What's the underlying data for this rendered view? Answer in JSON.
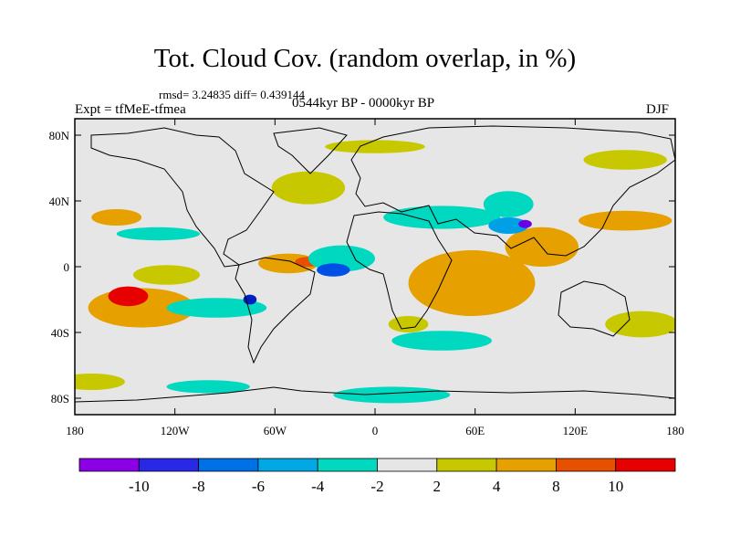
{
  "title": "Tot. Cloud Cov. (random overlap, in %)",
  "stats": "rmsd= 3.24835 diff= 0.439144",
  "experiment": "Expt = tfMeE-tfmea",
  "period": "0544kyr BP - 0000kyr BP",
  "season": "DJF",
  "map": {
    "projection": "cylindrical-equidistant",
    "lon_range": [
      -180,
      180
    ],
    "lat_range": [
      -90,
      90
    ],
    "background_color": "#e6e6e6",
    "x_ticks": [
      {
        "value": -180,
        "label": "180"
      },
      {
        "value": -120,
        "label": "120W"
      },
      {
        "value": -60,
        "label": "60W"
      },
      {
        "value": 0,
        "label": "0"
      },
      {
        "value": 60,
        "label": "60E"
      },
      {
        "value": 120,
        "label": "120E"
      },
      {
        "value": 180,
        "label": "180"
      }
    ],
    "y_ticks": [
      {
        "value": 80,
        "label": "80N"
      },
      {
        "value": 40,
        "label": "40N"
      },
      {
        "value": 0,
        "label": "0"
      },
      {
        "value": -40,
        "label": "40S"
      },
      {
        "value": -80,
        "label": "80S"
      }
    ],
    "anomaly_regions": [
      {
        "lon": 58,
        "lat": -10,
        "rlon": 38,
        "rlat": 20,
        "color": "#e6a000"
      },
      {
        "lon": 100,
        "lat": 12,
        "rlon": 22,
        "rlat": 12,
        "color": "#e6a000"
      },
      {
        "lon": 150,
        "lat": 28,
        "rlon": 28,
        "rlat": 6,
        "color": "#e6a000"
      },
      {
        "lon": -155,
        "lat": 30,
        "rlon": 15,
        "rlat": 5,
        "color": "#e6a000"
      },
      {
        "lon": -140,
        "lat": -25,
        "rlon": 32,
        "rlat": 12,
        "color": "#e6a000"
      },
      {
        "lon": -148,
        "lat": -18,
        "rlon": 12,
        "rlat": 6,
        "color": "#e60000"
      },
      {
        "lon": -52,
        "lat": 2,
        "rlon": 18,
        "rlat": 6,
        "color": "#e6a000"
      },
      {
        "lon": -40,
        "lat": 3,
        "rlon": 8,
        "rlat": 3,
        "color": "#e65000"
      },
      {
        "lon": -125,
        "lat": -5,
        "rlon": 20,
        "rlat": 6,
        "color": "#c8c800"
      },
      {
        "lon": -40,
        "lat": 48,
        "rlon": 22,
        "rlat": 10,
        "color": "#c8c800"
      },
      {
        "lon": 0,
        "lat": 73,
        "rlon": 30,
        "rlat": 4,
        "color": "#c8c800"
      },
      {
        "lon": 150,
        "lat": 65,
        "rlon": 25,
        "rlat": 6,
        "color": "#c8c800"
      },
      {
        "lon": 160,
        "lat": -35,
        "rlon": 22,
        "rlat": 8,
        "color": "#c8c800"
      },
      {
        "lon": -170,
        "lat": -70,
        "rlon": 20,
        "rlat": 5,
        "color": "#c8c800"
      },
      {
        "lon": 20,
        "lat": -35,
        "rlon": 12,
        "rlat": 5,
        "color": "#c8c800"
      },
      {
        "lon": 40,
        "lat": 30,
        "rlon": 35,
        "rlat": 7,
        "color": "#00d8c0"
      },
      {
        "lon": 80,
        "lat": 38,
        "rlon": 15,
        "rlat": 8,
        "color": "#00d8c0"
      },
      {
        "lon": -20,
        "lat": 5,
        "rlon": 20,
        "rlat": 8,
        "color": "#00d8c0"
      },
      {
        "lon": -130,
        "lat": 20,
        "rlon": 25,
        "rlat": 4,
        "color": "#00d8c0"
      },
      {
        "lon": -95,
        "lat": -25,
        "rlon": 30,
        "rlat": 6,
        "color": "#00d8c0"
      },
      {
        "lon": 40,
        "lat": -45,
        "rlon": 30,
        "rlat": 6,
        "color": "#00d8c0"
      },
      {
        "lon": 10,
        "lat": -78,
        "rlon": 35,
        "rlat": 5,
        "color": "#00d8c0"
      },
      {
        "lon": -100,
        "lat": -73,
        "rlon": 25,
        "rlat": 4,
        "color": "#00d8c0"
      },
      {
        "lon": 80,
        "lat": 25,
        "rlon": 12,
        "rlat": 5,
        "color": "#00a0e6"
      },
      {
        "lon": -25,
        "lat": -2,
        "rlon": 10,
        "rlat": 4,
        "color": "#0050e6"
      },
      {
        "lon": 90,
        "lat": 26,
        "rlon": 4,
        "rlat": 2.5,
        "color": "#6a00e6"
      },
      {
        "lon": -75,
        "lat": -20,
        "rlon": 4,
        "rlat": 3,
        "color": "#0020c0"
      }
    ]
  },
  "colorbar": {
    "colors": [
      "#8c00e6",
      "#2828e6",
      "#0070e6",
      "#00a8e6",
      "#00d8c0",
      "#e6e6e6",
      "#c8c800",
      "#e6a000",
      "#e65000",
      "#e60000"
    ],
    "labels": [
      "-10",
      "-8",
      "-6",
      "-4",
      "-2",
      "2",
      "4",
      "8",
      "10"
    ]
  }
}
